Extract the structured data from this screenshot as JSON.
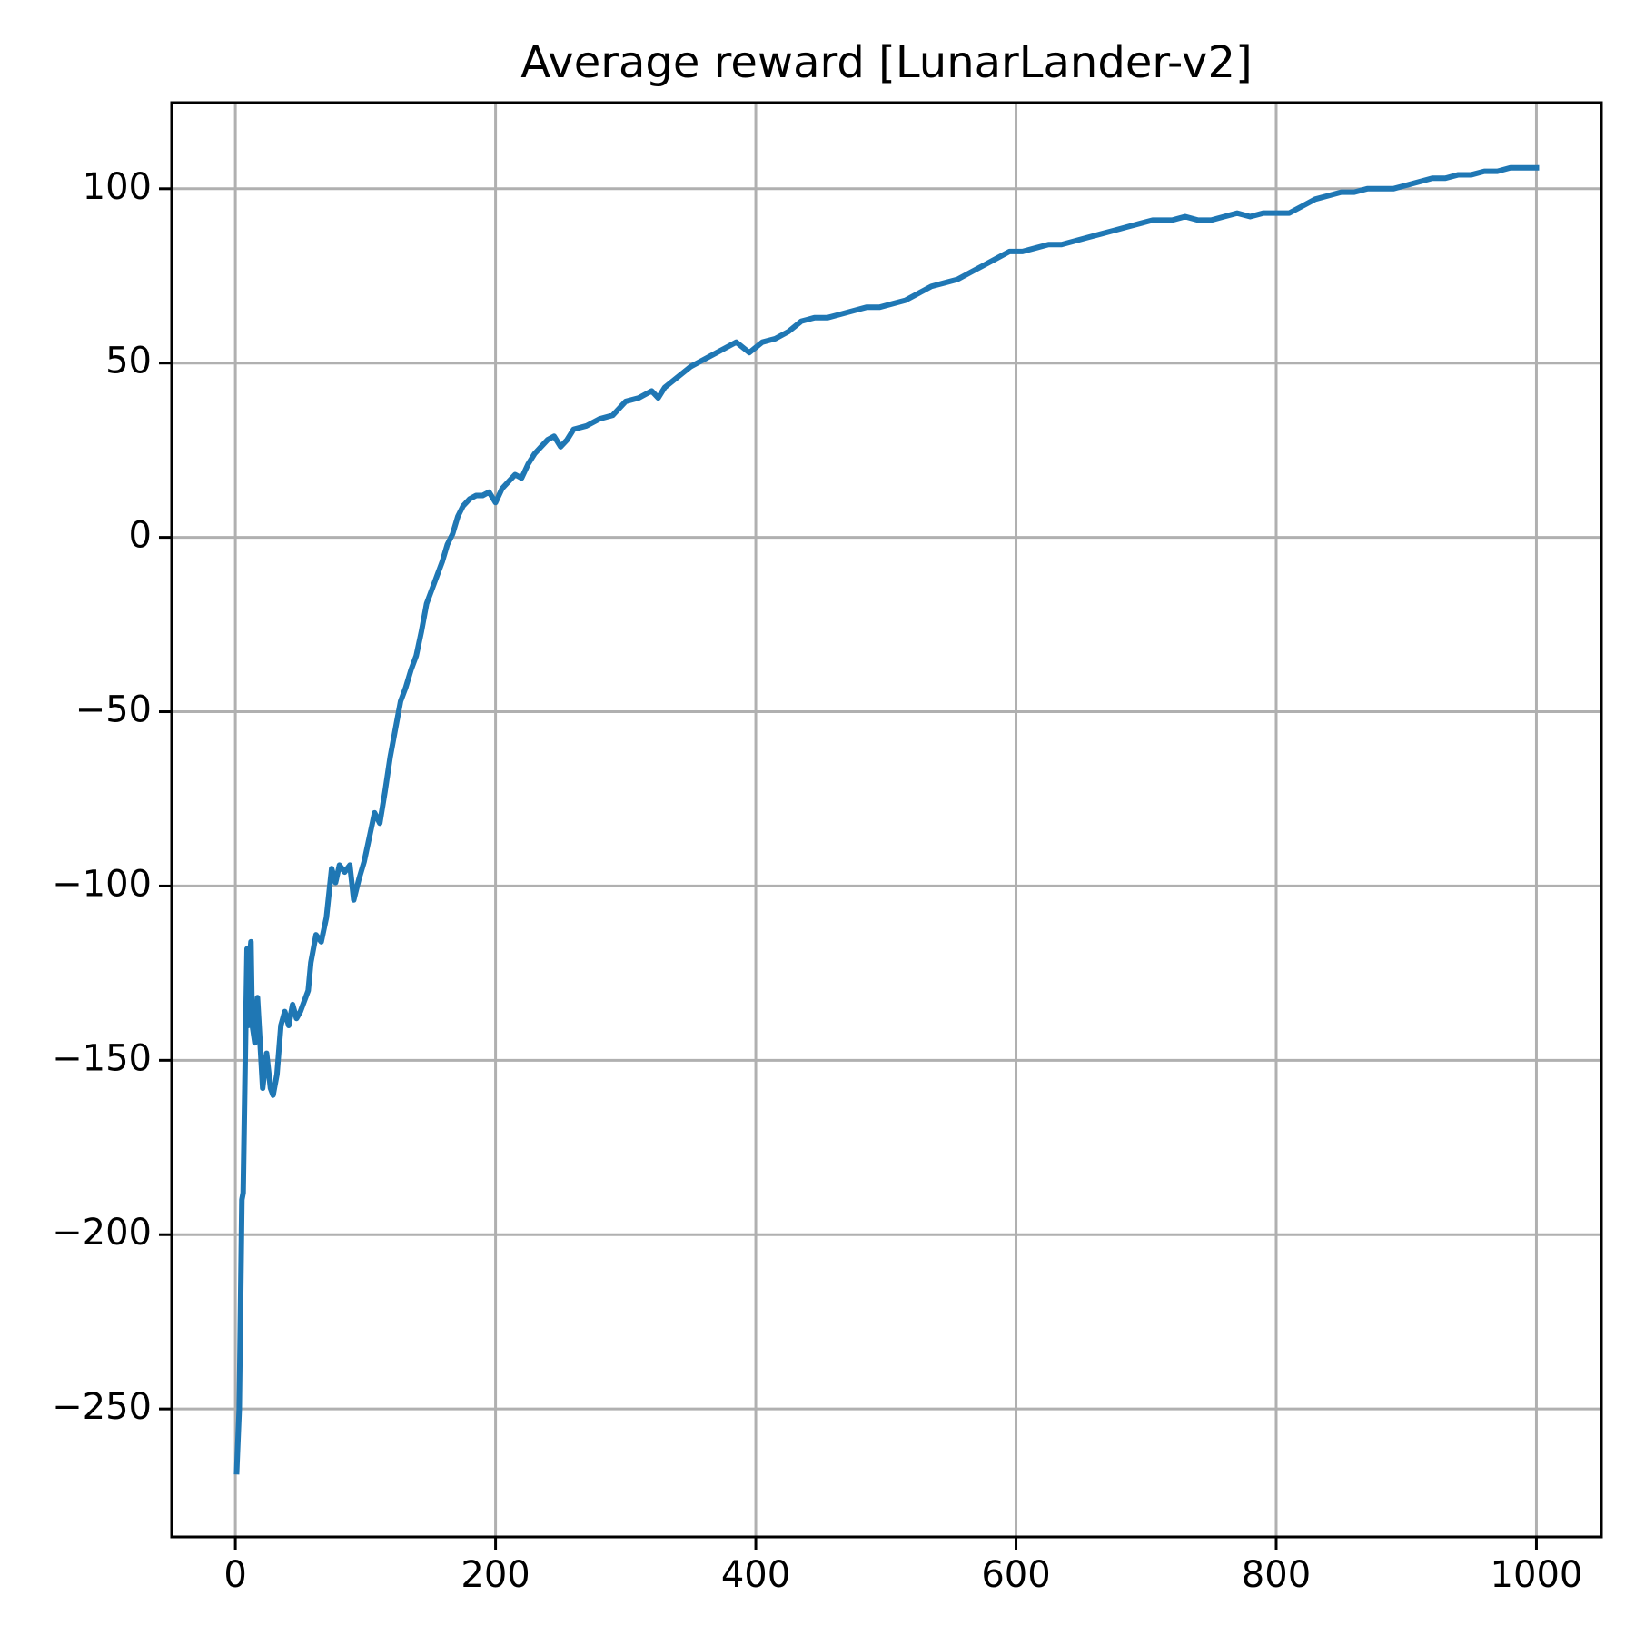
{
  "chart_data": {
    "type": "line",
    "title": "Average reward [LunarLander-v2]",
    "x": [
      1,
      3,
      5,
      6,
      8,
      9,
      10,
      11,
      12,
      13,
      15,
      17,
      19,
      21,
      24,
      27,
      29,
      32,
      35,
      38,
      41,
      44,
      47,
      50,
      53,
      56,
      58,
      62,
      66,
      70,
      74,
      77,
      80,
      84,
      88,
      91,
      95,
      99,
      103,
      107,
      111,
      115,
      119,
      123,
      127,
      131,
      135,
      139,
      143,
      147,
      151,
      155,
      159,
      163,
      167,
      171,
      175,
      180,
      185,
      190,
      195,
      200,
      205,
      210,
      215,
      220,
      225,
      230,
      235,
      240,
      245,
      250,
      255,
      260,
      270,
      280,
      290,
      300,
      310,
      320,
      325,
      330,
      340,
      350,
      360,
      370,
      380,
      385,
      395,
      405,
      415,
      425,
      435,
      445,
      455,
      465,
      475,
      485,
      495,
      505,
      515,
      525,
      535,
      545,
      555,
      565,
      575,
      585,
      595,
      605,
      615,
      625,
      635,
      645,
      655,
      665,
      675,
      685,
      695,
      705,
      720,
      730,
      740,
      750,
      760,
      770,
      780,
      790,
      800,
      810,
      820,
      830,
      840,
      850,
      860,
      870,
      880,
      890,
      900,
      910,
      920,
      930,
      940,
      950,
      960,
      970,
      980,
      990,
      1000
    ],
    "series": [
      {
        "color": "#1f77b4",
        "values": [
          -268,
          -250,
          -190,
          -188,
          -140,
          -118,
          -140,
          -120,
          -116,
          -140,
          -145,
          -132,
          -145,
          -158,
          -148,
          -158,
          -160,
          -154,
          -140,
          -136,
          -140,
          -134,
          -138,
          -136,
          -133,
          -130,
          -122,
          -114,
          -116,
          -109,
          -95,
          -99,
          -94,
          -96,
          -94,
          -104,
          -98,
          -93,
          -86,
          -79,
          -82,
          -73,
          -63,
          -55,
          -47,
          -43,
          -38,
          -34,
          -27,
          -19,
          -15,
          -11,
          -7,
          -2,
          1,
          6,
          9,
          11,
          12,
          12,
          13,
          10,
          14,
          16,
          18,
          17,
          21,
          24,
          26,
          28,
          29,
          26,
          28,
          31,
          32,
          34,
          35,
          39,
          40,
          42,
          40,
          43,
          46,
          49,
          51,
          53,
          55,
          56,
          53,
          56,
          57,
          59,
          62,
          63,
          63,
          64,
          65,
          66,
          66,
          67,
          68,
          70,
          72,
          73,
          74,
          76,
          78,
          80,
          82,
          82,
          83,
          84,
          84,
          85,
          86,
          87,
          88,
          89,
          90,
          91,
          91,
          92,
          91,
          91,
          92,
          93,
          92,
          93,
          93,
          93,
          95,
          97,
          98,
          99,
          99,
          100,
          100,
          100,
          101,
          102,
          103,
          103,
          104,
          104,
          105,
          105,
          106,
          106,
          106
        ]
      }
    ],
    "xlim": [
      -48.95,
      1049.95
    ],
    "ylim": [
      -286.7,
      124.7
    ],
    "xticks": [
      0,
      200,
      400,
      600,
      800,
      1000
    ],
    "yticks": [
      {
        "value": -250,
        "label": "−250"
      },
      {
        "value": -200,
        "label": "−200"
      },
      {
        "value": -150,
        "label": "−150"
      },
      {
        "value": -100,
        "label": "−100"
      },
      {
        "value": -50,
        "label": "−50"
      },
      0,
      50,
      100
    ],
    "grid": true
  }
}
